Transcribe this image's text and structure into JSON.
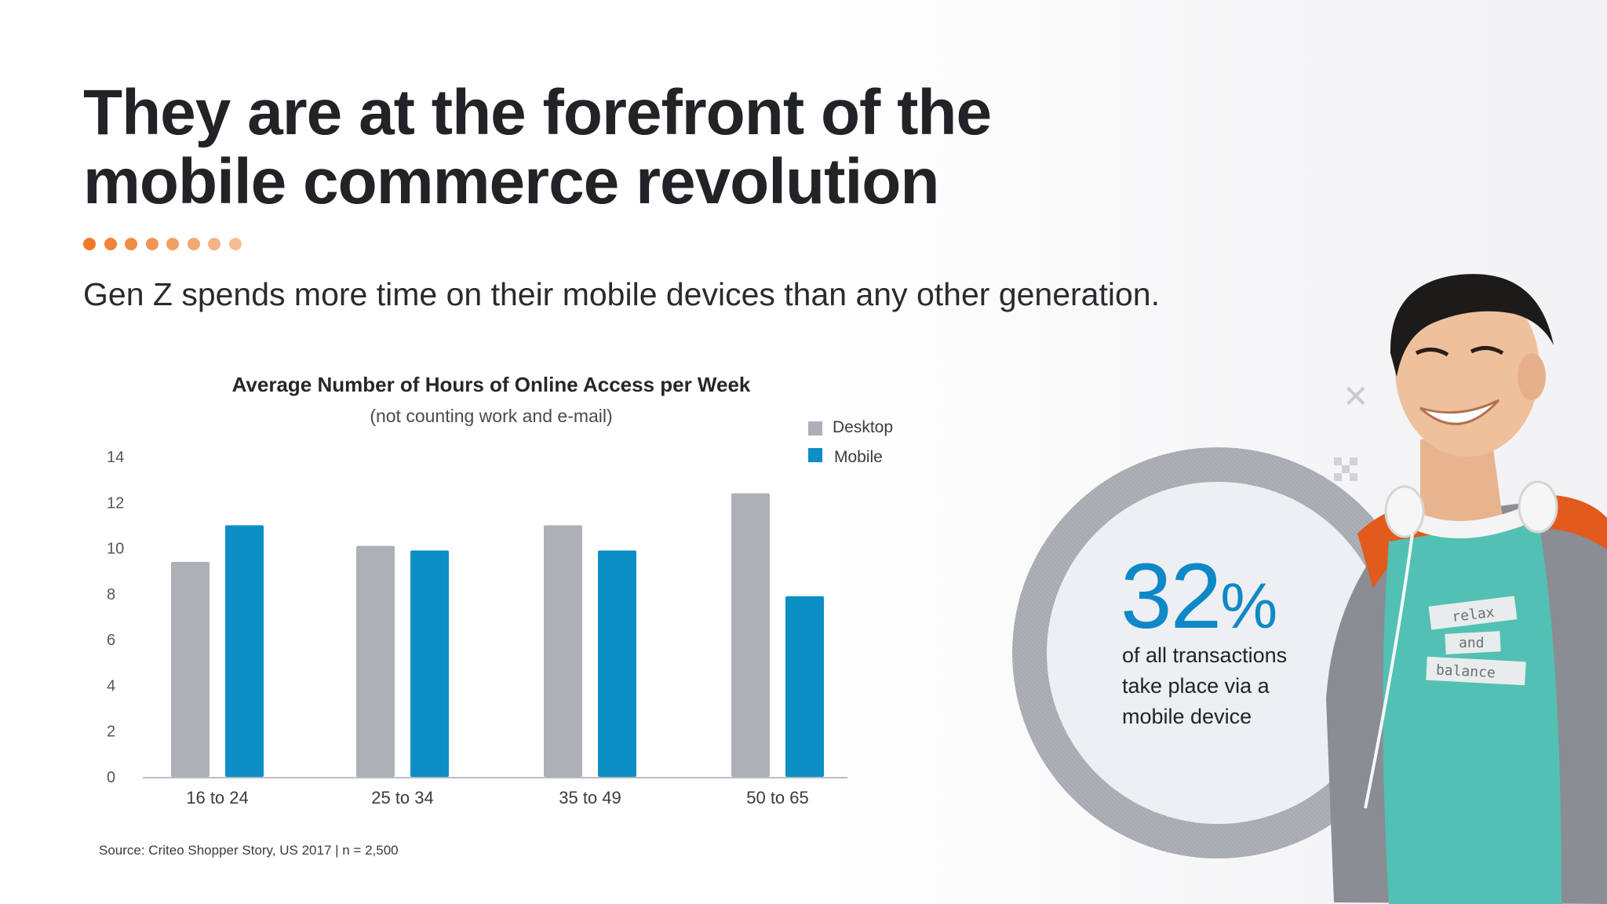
{
  "headline": {
    "line1": "They are at the forefront of the",
    "line2": "mobile commerce revolution"
  },
  "dot_colors": [
    "#ef7a2a",
    "#f08335",
    "#f18c44",
    "#f29553",
    "#f39e63",
    "#f4a873",
    "#f5b284",
    "#f7bd96"
  ],
  "subtitle": "Gen Z spends more time on their mobile devices than any other generation.",
  "chart_data": {
    "type": "bar",
    "title": "Average Number of Hours of Online Access per Week",
    "subtitle": "(not counting work and e-mail)",
    "categories": [
      "16 to 24",
      "25 to 34",
      "35 to 49",
      "50 to 65"
    ],
    "series": [
      {
        "name": "Desktop",
        "values": [
          9.4,
          10.1,
          11.0,
          12.4
        ],
        "color": "#adb0b6"
      },
      {
        "name": "Mobile",
        "values": [
          11.0,
          9.9,
          9.9,
          7.9
        ],
        "color": "#0b8fc4"
      }
    ],
    "y_ticks": [
      "0",
      "2",
      "4",
      "6",
      "8",
      "10",
      "12",
      "14"
    ],
    "ylim": [
      0,
      14
    ],
    "grid": false,
    "legend_position": "top-right"
  },
  "source": "Source: Criteo Shopper Story, US 2017 | n = 2,500",
  "stat": {
    "value": "32",
    "unit": "%",
    "caption_line1": "of all transactions",
    "caption_line2": "take place via a",
    "caption_line3": "mobile device",
    "color": "#0e88c7"
  },
  "shirt_text": {
    "line1": "relax",
    "line2": "and",
    "line3": "balance"
  }
}
